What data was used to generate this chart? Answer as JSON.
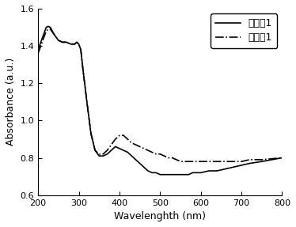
{
  "title": "",
  "xlabel": "Wavelenghth (nm)",
  "ylabel": "Absorbance (a.u.)",
  "xlim": [
    200,
    800
  ],
  "ylim": [
    0.6,
    1.6
  ],
  "yticks": [
    0.6,
    0.8,
    1.0,
    1.2,
    1.4,
    1.6
  ],
  "xticks": [
    200,
    300,
    400,
    500,
    600,
    700,
    800
  ],
  "legend_labels": [
    "比较例1",
    "实施例1"
  ],
  "line1_style": "-",
  "line2_style": "-.",
  "line_color": "#000000",
  "line_width": 1.2,
  "background_color": "#ffffff",
  "line1_x": [
    200,
    210,
    220,
    225,
    230,
    240,
    250,
    260,
    270,
    280,
    290,
    295,
    300,
    305,
    310,
    320,
    330,
    340,
    350,
    360,
    370,
    380,
    390,
    400,
    410,
    420,
    430,
    440,
    450,
    460,
    470,
    480,
    490,
    500,
    510,
    520,
    530,
    540,
    550,
    560,
    570,
    580,
    590,
    600,
    620,
    640,
    660,
    680,
    700,
    720,
    750,
    800
  ],
  "line1_y": [
    1.38,
    1.44,
    1.5,
    1.505,
    1.5,
    1.46,
    1.43,
    1.42,
    1.42,
    1.41,
    1.41,
    1.42,
    1.41,
    1.38,
    1.28,
    1.1,
    0.93,
    0.84,
    0.81,
    0.81,
    0.82,
    0.84,
    0.86,
    0.85,
    0.84,
    0.83,
    0.81,
    0.79,
    0.77,
    0.75,
    0.73,
    0.72,
    0.72,
    0.71,
    0.71,
    0.71,
    0.71,
    0.71,
    0.71,
    0.71,
    0.71,
    0.72,
    0.72,
    0.72,
    0.73,
    0.73,
    0.74,
    0.75,
    0.76,
    0.77,
    0.78,
    0.8
  ],
  "line2_x": [
    200,
    210,
    220,
    225,
    230,
    240,
    250,
    260,
    270,
    280,
    290,
    295,
    300,
    305,
    310,
    320,
    330,
    340,
    350,
    360,
    370,
    380,
    390,
    400,
    410,
    420,
    430,
    440,
    450,
    460,
    470,
    480,
    490,
    500,
    510,
    520,
    530,
    540,
    550,
    560,
    570,
    580,
    590,
    600,
    620,
    640,
    660,
    680,
    700,
    720,
    750,
    800
  ],
  "line2_y": [
    1.36,
    1.42,
    1.48,
    1.49,
    1.49,
    1.46,
    1.43,
    1.42,
    1.42,
    1.41,
    1.41,
    1.42,
    1.41,
    1.38,
    1.28,
    1.1,
    0.93,
    0.84,
    0.82,
    0.82,
    0.84,
    0.87,
    0.9,
    0.92,
    0.92,
    0.9,
    0.88,
    0.87,
    0.86,
    0.85,
    0.84,
    0.83,
    0.82,
    0.82,
    0.81,
    0.8,
    0.8,
    0.79,
    0.78,
    0.78,
    0.78,
    0.78,
    0.78,
    0.78,
    0.78,
    0.78,
    0.78,
    0.78,
    0.78,
    0.79,
    0.79,
    0.8
  ]
}
